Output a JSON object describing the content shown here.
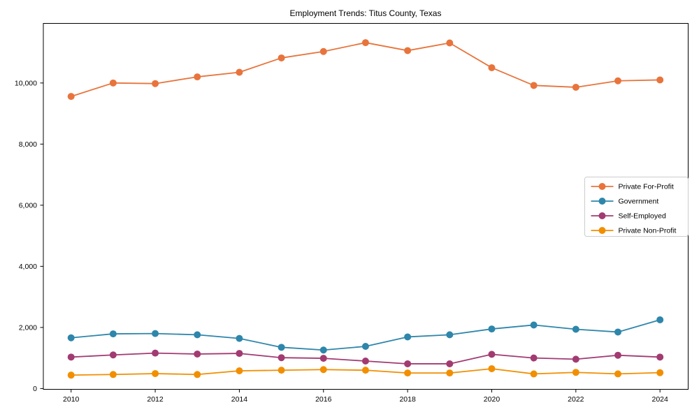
{
  "title": "Employment Trends: Titus County, Texas",
  "chart_data": {
    "type": "line",
    "title": "Employment Trends: Titus County, Texas",
    "xlabel": "",
    "ylabel": "",
    "x": [
      2010,
      2011,
      2012,
      2013,
      2014,
      2015,
      2016,
      2017,
      2018,
      2019,
      2020,
      2021,
      2022,
      2023,
      2024
    ],
    "series": [
      {
        "name": "Private For-Profit",
        "color": "#E8743C",
        "values": [
          9560,
          10000,
          9980,
          10200,
          10350,
          10820,
          11030,
          11320,
          11060,
          11310,
          10500,
          9920,
          9860,
          10070,
          10100
        ]
      },
      {
        "name": "Government",
        "color": "#2E86AB",
        "values": [
          1660,
          1790,
          1800,
          1760,
          1640,
          1350,
          1260,
          1380,
          1690,
          1760,
          1950,
          2080,
          1940,
          1850,
          2250
        ]
      },
      {
        "name": "Self-Employed",
        "color": "#A23B72",
        "values": [
          1030,
          1100,
          1160,
          1130,
          1150,
          1010,
          990,
          900,
          810,
          810,
          1120,
          1000,
          960,
          1090,
          1030
        ]
      },
      {
        "name": "Private Non-Profit",
        "color": "#F18F01",
        "values": [
          440,
          460,
          490,
          460,
          580,
          600,
          620,
          600,
          510,
          510,
          650,
          480,
          530,
          480,
          520
        ]
      }
    ],
    "xticks": [
      2010,
      2012,
      2014,
      2016,
      2018,
      2020,
      2022,
      2024
    ],
    "xtick_labels": [
      "2010",
      "2012",
      "2014",
      "2016",
      "2018",
      "2020",
      "2022",
      "2024"
    ],
    "yticks": [
      0,
      2000,
      4000,
      6000,
      8000,
      10000
    ],
    "ytick_labels": [
      "0",
      "2,000",
      "4,000",
      "6,000",
      "8,000",
      "10,000"
    ],
    "xlim": [
      2009.34,
      2024.67
    ],
    "ylim": [
      -25,
      11950
    ],
    "grid": false,
    "legend_position": "center-right",
    "marker": "circle",
    "colors": {
      "axis": "#000000",
      "legend_border": "#cccccc",
      "background": "#ffffff"
    }
  }
}
